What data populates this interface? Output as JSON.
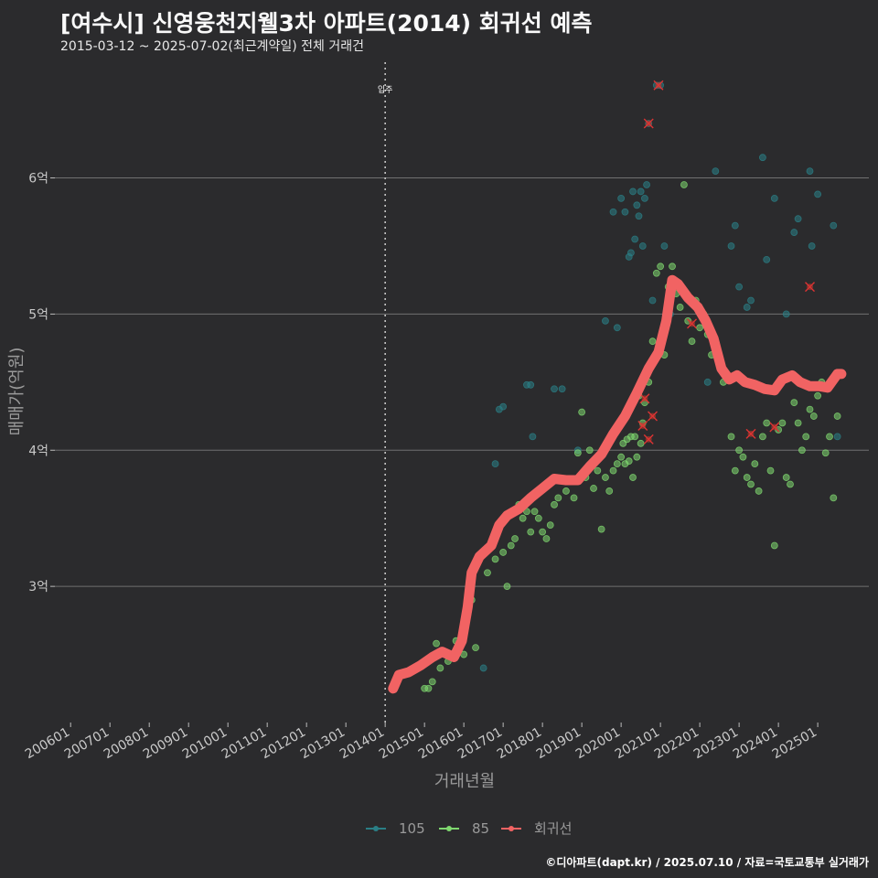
{
  "header": {
    "title": "[여수시] 신영웅천지웰3차 아파트(2014) 회귀선 예측",
    "subtitle": "2015-03-12 ~ 2025-07-02(최근계약일) 전체 거래건"
  },
  "footer": {
    "credit": "©디아파트(dapt.kr) / 2025.07.10 / 자료=국토교통부 실거래가"
  },
  "colors": {
    "s105": "#2a7f86",
    "s85": "#7fd86f",
    "regression": "#f16363",
    "background": "#2b2b2d",
    "grid": "#707070"
  },
  "chart_data": {
    "type": "scatter",
    "title": "[여수시] 신영웅천지웰3차 아파트(2014) 회귀선 예측",
    "xlabel": "거래년월",
    "ylabel": "매매가(억원)",
    "x_ticks": [
      "200601",
      "200701",
      "200801",
      "200901",
      "201001",
      "201101",
      "201201",
      "201301",
      "201401",
      "201501",
      "201601",
      "201701",
      "201801",
      "201901",
      "202001",
      "202101",
      "202201",
      "202301",
      "202401",
      "202501"
    ],
    "x_range": [
      2005.6,
      2026.3
    ],
    "y_ticks": [
      3,
      4,
      5,
      6
    ],
    "y_tick_labels": [
      "3억",
      "4억",
      "5억",
      "6억"
    ],
    "y_range": [
      2.0,
      6.85
    ],
    "annotation": {
      "x": 2014.0,
      "label": "입주"
    },
    "legend": {
      "position": "bottom",
      "entries": [
        "105",
        "85",
        "회귀선"
      ]
    },
    "series": [
      {
        "name": "105",
        "points": [
          [
            2016.5,
            2.4
          ],
          [
            2016.8,
            3.9
          ],
          [
            2016.9,
            4.3
          ],
          [
            2017.0,
            4.32
          ],
          [
            2017.6,
            4.48
          ],
          [
            2017.7,
            4.48
          ],
          [
            2017.75,
            4.1
          ],
          [
            2018.3,
            4.45
          ],
          [
            2018.5,
            4.45
          ],
          [
            2018.9,
            4.0
          ],
          [
            2019.6,
            4.95
          ],
          [
            2019.8,
            5.75
          ],
          [
            2019.9,
            4.9
          ],
          [
            2020.0,
            5.85
          ],
          [
            2020.1,
            5.75
          ],
          [
            2020.2,
            5.42
          ],
          [
            2020.25,
            5.45
          ],
          [
            2020.3,
            5.9
          ],
          [
            2020.35,
            5.55
          ],
          [
            2020.4,
            5.8
          ],
          [
            2020.45,
            5.72
          ],
          [
            2020.5,
            5.9
          ],
          [
            2020.55,
            5.5
          ],
          [
            2020.6,
            5.85
          ],
          [
            2020.65,
            5.95
          ],
          [
            2020.7,
            6.4
          ],
          [
            2020.8,
            5.1
          ],
          [
            2020.9,
            6.68
          ],
          [
            2021.0,
            6.68
          ],
          [
            2021.1,
            5.5
          ],
          [
            2021.25,
            5.0
          ],
          [
            2022.2,
            4.5
          ],
          [
            2022.4,
            6.05
          ],
          [
            2022.8,
            5.5
          ],
          [
            2022.9,
            5.65
          ],
          [
            2023.0,
            5.2
          ],
          [
            2023.2,
            5.05
          ],
          [
            2023.3,
            5.1
          ],
          [
            2023.6,
            6.15
          ],
          [
            2023.7,
            5.4
          ],
          [
            2023.9,
            5.85
          ],
          [
            2024.2,
            5.0
          ],
          [
            2024.4,
            5.6
          ],
          [
            2024.5,
            5.7
          ],
          [
            2024.8,
            6.05
          ],
          [
            2024.85,
            5.5
          ],
          [
            2025.0,
            5.88
          ],
          [
            2025.4,
            5.65
          ],
          [
            2025.5,
            4.1
          ]
        ]
      },
      {
        "name": "85",
        "points": [
          [
            2015.0,
            2.25
          ],
          [
            2015.1,
            2.25
          ],
          [
            2015.2,
            2.3
          ],
          [
            2015.3,
            2.58
          ],
          [
            2015.4,
            2.4
          ],
          [
            2015.6,
            2.45
          ],
          [
            2015.8,
            2.6
          ],
          [
            2016.0,
            2.5
          ],
          [
            2016.2,
            2.9
          ],
          [
            2016.3,
            2.55
          ],
          [
            2016.6,
            3.1
          ],
          [
            2016.8,
            3.2
          ],
          [
            2016.9,
            3.45
          ],
          [
            2017.0,
            3.25
          ],
          [
            2017.1,
            3.0
          ],
          [
            2017.2,
            3.3
          ],
          [
            2017.3,
            3.35
          ],
          [
            2017.4,
            3.6
          ],
          [
            2017.5,
            3.5
          ],
          [
            2017.6,
            3.55
          ],
          [
            2017.7,
            3.4
          ],
          [
            2017.8,
            3.55
          ],
          [
            2017.9,
            3.5
          ],
          [
            2018.0,
            3.4
          ],
          [
            2018.1,
            3.35
          ],
          [
            2018.2,
            3.45
          ],
          [
            2018.3,
            3.6
          ],
          [
            2018.4,
            3.65
          ],
          [
            2018.6,
            3.7
          ],
          [
            2018.8,
            3.65
          ],
          [
            2018.9,
            3.98
          ],
          [
            2019.0,
            4.28
          ],
          [
            2019.1,
            3.8
          ],
          [
            2019.2,
            4.0
          ],
          [
            2019.3,
            3.72
          ],
          [
            2019.4,
            3.85
          ],
          [
            2019.5,
            3.42
          ],
          [
            2019.6,
            3.8
          ],
          [
            2019.7,
            3.7
          ],
          [
            2019.8,
            3.85
          ],
          [
            2019.9,
            3.9
          ],
          [
            2020.0,
            3.95
          ],
          [
            2020.05,
            4.05
          ],
          [
            2020.1,
            3.9
          ],
          [
            2020.15,
            4.08
          ],
          [
            2020.2,
            3.92
          ],
          [
            2020.25,
            4.1
          ],
          [
            2020.3,
            3.8
          ],
          [
            2020.35,
            4.1
          ],
          [
            2020.4,
            3.95
          ],
          [
            2020.45,
            4.4
          ],
          [
            2020.5,
            4.05
          ],
          [
            2020.55,
            4.2
          ],
          [
            2020.6,
            4.35
          ],
          [
            2020.7,
            4.5
          ],
          [
            2020.8,
            4.8
          ],
          [
            2020.9,
            5.3
          ],
          [
            2021.0,
            5.35
          ],
          [
            2021.1,
            4.7
          ],
          [
            2021.2,
            5.2
          ],
          [
            2021.3,
            5.35
          ],
          [
            2021.4,
            5.15
          ],
          [
            2021.5,
            5.05
          ],
          [
            2021.6,
            5.95
          ],
          [
            2021.7,
            4.95
          ],
          [
            2021.8,
            4.8
          ],
          [
            2021.9,
            5.1
          ],
          [
            2022.0,
            4.9
          ],
          [
            2022.1,
            5.0
          ],
          [
            2022.2,
            4.85
          ],
          [
            2022.3,
            4.7
          ],
          [
            2022.6,
            4.5
          ],
          [
            2022.8,
            4.1
          ],
          [
            2022.9,
            3.85
          ],
          [
            2023.0,
            4.0
          ],
          [
            2023.1,
            3.95
          ],
          [
            2023.2,
            3.8
          ],
          [
            2023.3,
            3.75
          ],
          [
            2023.4,
            3.9
          ],
          [
            2023.5,
            3.7
          ],
          [
            2023.6,
            4.1
          ],
          [
            2023.7,
            4.2
          ],
          [
            2023.8,
            3.85
          ],
          [
            2023.9,
            3.3
          ],
          [
            2024.0,
            4.15
          ],
          [
            2024.1,
            4.2
          ],
          [
            2024.2,
            3.8
          ],
          [
            2024.3,
            3.75
          ],
          [
            2024.4,
            4.35
          ],
          [
            2024.5,
            4.2
          ],
          [
            2024.6,
            4.0
          ],
          [
            2024.7,
            4.1
          ],
          [
            2024.8,
            4.3
          ],
          [
            2024.9,
            4.25
          ],
          [
            2025.0,
            4.4
          ],
          [
            2025.1,
            4.5
          ],
          [
            2025.2,
            3.98
          ],
          [
            2025.3,
            4.1
          ],
          [
            2025.4,
            3.65
          ],
          [
            2025.5,
            4.25
          ]
        ]
      }
    ],
    "regression_outliers": [
      [
        2020.6,
        4.38
      ],
      [
        2020.55,
        4.18
      ],
      [
        2020.7,
        4.08
      ],
      [
        2020.8,
        4.25
      ],
      [
        2020.7,
        6.4
      ],
      [
        2020.95,
        6.68
      ],
      [
        2021.8,
        4.93
      ],
      [
        2023.3,
        4.12
      ],
      [
        2023.9,
        4.17
      ],
      [
        2024.8,
        5.2
      ]
    ],
    "regression": [
      [
        2014.2,
        2.25
      ],
      [
        2014.35,
        2.35
      ],
      [
        2014.6,
        2.37
      ],
      [
        2014.9,
        2.42
      ],
      [
        2015.2,
        2.48
      ],
      [
        2015.45,
        2.52
      ],
      [
        2015.75,
        2.48
      ],
      [
        2015.95,
        2.6
      ],
      [
        2016.1,
        2.85
      ],
      [
        2016.2,
        3.1
      ],
      [
        2016.4,
        3.22
      ],
      [
        2016.7,
        3.3
      ],
      [
        2016.9,
        3.45
      ],
      [
        2017.1,
        3.52
      ],
      [
        2017.4,
        3.57
      ],
      [
        2017.7,
        3.65
      ],
      [
        2018.0,
        3.72
      ],
      [
        2018.3,
        3.79
      ],
      [
        2018.6,
        3.78
      ],
      [
        2018.9,
        3.78
      ],
      [
        2019.2,
        3.88
      ],
      [
        2019.5,
        3.97
      ],
      [
        2019.8,
        4.12
      ],
      [
        2020.1,
        4.25
      ],
      [
        2020.4,
        4.42
      ],
      [
        2020.7,
        4.6
      ],
      [
        2020.95,
        4.72
      ],
      [
        2021.15,
        4.95
      ],
      [
        2021.3,
        5.25
      ],
      [
        2021.45,
        5.22
      ],
      [
        2021.7,
        5.12
      ],
      [
        2021.95,
        5.05
      ],
      [
        2022.15,
        4.95
      ],
      [
        2022.35,
        4.82
      ],
      [
        2022.55,
        4.6
      ],
      [
        2022.75,
        4.52
      ],
      [
        2022.95,
        4.55
      ],
      [
        2023.15,
        4.5
      ],
      [
        2023.4,
        4.48
      ],
      [
        2023.65,
        4.45
      ],
      [
        2023.9,
        4.44
      ],
      [
        2024.1,
        4.52
      ],
      [
        2024.35,
        4.55
      ],
      [
        2024.55,
        4.5
      ],
      [
        2024.8,
        4.47
      ],
      [
        2025.05,
        4.47
      ],
      [
        2025.25,
        4.46
      ],
      [
        2025.35,
        4.5
      ],
      [
        2025.5,
        4.56
      ],
      [
        2025.6,
        4.56
      ]
    ]
  }
}
